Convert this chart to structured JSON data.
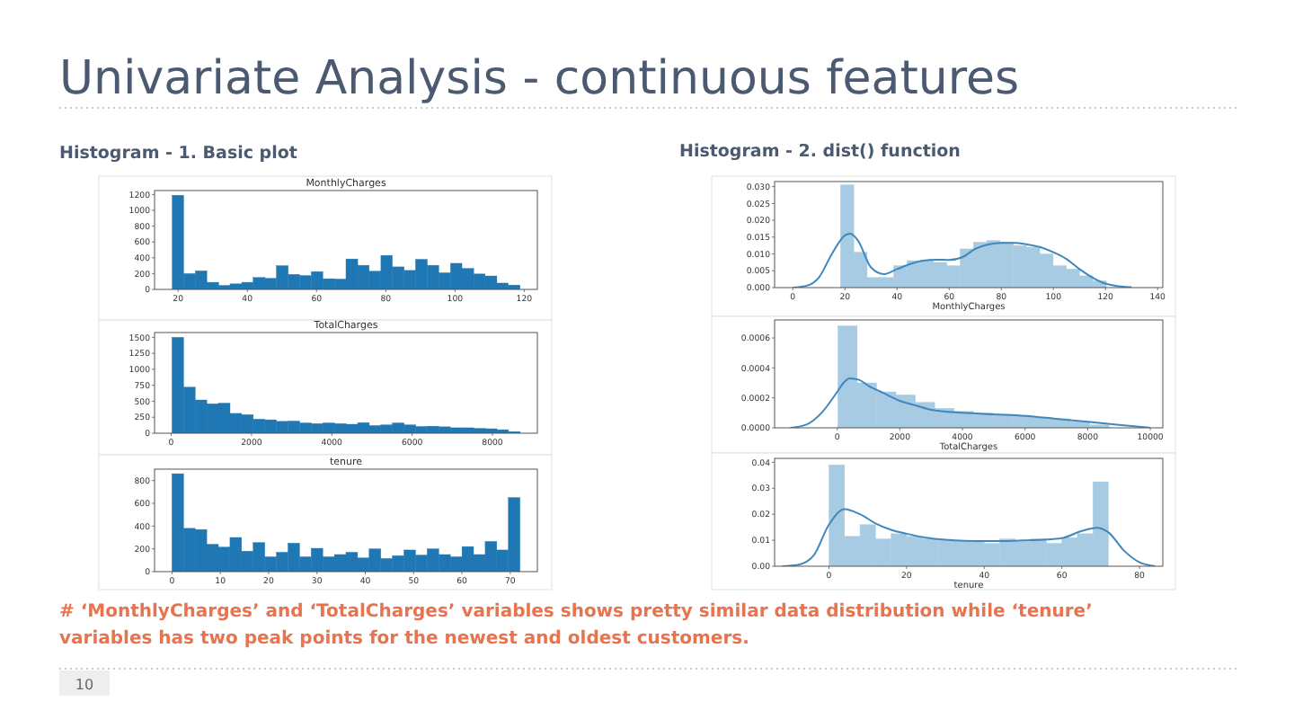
{
  "chart_data": [
    {
      "type": "other",
      "title": "Univariate Analysis - continuous features",
      "annotations": [
        "Histogram - 1. Basic plot",
        "Histogram - 2. dist() function",
        "# ‘MonthlyCharges’ and ‘TotalCharges’ variables shows pretty similar data distribution while ‘tenure’ variables has two peak points for the newest and oldest customers.",
        "10"
      ]
    },
    {
      "type": "histogram",
      "title": "MonthlyCharges",
      "color": "#1f77b4",
      "bins": [
        18.3,
        21.6,
        25,
        28.3,
        31.7,
        35,
        38.4,
        41.7,
        45.1,
        48.4,
        51.8,
        55.1,
        58.5,
        61.8,
        65.2,
        68.5,
        71.9,
        75.2,
        78.6,
        81.9,
        85.3,
        88.6,
        92,
        95.3,
        98.7,
        102,
        105.4,
        108.7,
        112.1,
        115.4,
        118.8
      ],
      "values": [
        1190,
        200,
        235,
        90,
        50,
        70,
        90,
        150,
        140,
        300,
        190,
        175,
        225,
        135,
        130,
        385,
        305,
        230,
        430,
        285,
        240,
        380,
        305,
        210,
        330,
        265,
        195,
        170,
        80,
        55
      ],
      "xlim": [
        13.2,
        123.8
      ],
      "xticks": [
        20,
        40,
        60,
        80,
        100,
        120
      ],
      "ylim": [
        0,
        1250
      ],
      "yticks": [
        0,
        200,
        400,
        600,
        800,
        1000,
        1200
      ]
    },
    {
      "type": "histogram",
      "title": "TotalCharges",
      "color": "#1f77b4",
      "bins": [
        19,
        308,
        597,
        886,
        1175,
        1464,
        1753,
        2042,
        2331,
        2620,
        2909,
        3198,
        3487,
        3776,
        4065,
        4354,
        4643,
        4932,
        5221,
        5510,
        5799,
        6088,
        6377,
        6666,
        6955,
        7244,
        7533,
        7822,
        8111,
        8400,
        8689
      ],
      "values": [
        1500,
        720,
        520,
        460,
        470,
        310,
        290,
        220,
        210,
        185,
        190,
        160,
        150,
        160,
        150,
        140,
        165,
        120,
        130,
        160,
        130,
        105,
        110,
        100,
        85,
        85,
        75,
        70,
        55,
        25
      ],
      "xlim": [
        -415,
        9118
      ],
      "xticks": [
        0,
        2000,
        4000,
        6000,
        8000
      ],
      "ylim": [
        0,
        1575
      ],
      "yticks": [
        0,
        250,
        500,
        750,
        1000,
        1250,
        1500
      ]
    },
    {
      "type": "histogram",
      "title": "tenure",
      "color": "#1f77b4",
      "bins": [
        0,
        2.4,
        4.8,
        7.2,
        9.6,
        12,
        14.4,
        16.8,
        19.2,
        21.6,
        24,
        26.4,
        28.8,
        31.2,
        33.6,
        36,
        38.4,
        40.8,
        43.2,
        45.6,
        48,
        50.4,
        52.8,
        55.2,
        57.6,
        60,
        62.4,
        64.8,
        67.2,
        69.6,
        72
      ],
      "values": [
        860,
        380,
        370,
        240,
        215,
        300,
        180,
        255,
        130,
        170,
        250,
        130,
        205,
        130,
        150,
        170,
        120,
        200,
        115,
        140,
        190,
        145,
        200,
        150,
        130,
        220,
        150,
        265,
        190,
        650
      ],
      "xlim": [
        -3.6,
        75.6
      ],
      "xticks": [
        0,
        10,
        20,
        30,
        40,
        50,
        60,
        70
      ],
      "ylim": [
        0,
        900
      ],
      "yticks": [
        0,
        200,
        400,
        600,
        800
      ]
    },
    {
      "type": "histogram",
      "xlabel": "MonthlyCharges",
      "xlim": [
        -7,
        142
      ],
      "xticks": [
        0,
        20,
        40,
        60,
        80,
        100,
        120,
        140
      ],
      "ylim": [
        0,
        0.0315
      ],
      "yticks": [
        {
          "value": 0,
          "label": "0.000"
        },
        {
          "value": 0.005,
          "label": "0.005"
        },
        {
          "value": 0.01,
          "label": "0.010"
        },
        {
          "value": 0.015,
          "label": "0.015"
        },
        {
          "value": 0.02,
          "label": "0.020"
        },
        {
          "value": 0.025,
          "label": "0.025"
        },
        {
          "value": 0.03,
          "label": "0.030"
        }
      ],
      "series": [
        {
          "type": "histogram",
          "color": "#a6cbe3",
          "bins": [
            18.3,
            23.4,
            28.5,
            33.6,
            38.7,
            43.8,
            48.9,
            54,
            59.1,
            64.2,
            69.3,
            74.4,
            79.5,
            84.6,
            89.7,
            94.8,
            99.9,
            105,
            110.1,
            115.2,
            120.3
          ],
          "values": [
            0.0305,
            0.0105,
            0.003,
            0.003,
            0.0065,
            0.008,
            0.0082,
            0.0075,
            0.0065,
            0.0115,
            0.0135,
            0.014,
            0.0135,
            0.0125,
            0.012,
            0.01,
            0.0065,
            0.0055,
            0.0035,
            0.002
          ]
        },
        {
          "type": "line",
          "color": "#3f87bc",
          "x": [
            0,
            5,
            10,
            15,
            20,
            22,
            25,
            30,
            35,
            40,
            45,
            50,
            55,
            60,
            65,
            70,
            75,
            80,
            85,
            90,
            95,
            100,
            105,
            110,
            115,
            120,
            125,
            130
          ],
          "values": [
            0,
            0.0005,
            0.003,
            0.01,
            0.0155,
            0.016,
            0.014,
            0.006,
            0.004,
            0.0055,
            0.007,
            0.008,
            0.0083,
            0.0082,
            0.009,
            0.0115,
            0.0128,
            0.0133,
            0.0133,
            0.0128,
            0.012,
            0.0105,
            0.0085,
            0.0055,
            0.003,
            0.0012,
            0.0004,
            0.0001
          ]
        }
      ]
    },
    {
      "type": "histogram",
      "xlabel": "TotalCharges",
      "xlim": [
        -2000,
        10400
      ],
      "xticks": [
        0,
        2000,
        4000,
        6000,
        8000,
        10000
      ],
      "ylim": [
        0,
        0.00072
      ],
      "yticks": [
        {
          "value": 0,
          "label": "0.0000"
        },
        {
          "value": 0.0002,
          "label": "0.0002"
        },
        {
          "value": 0.0004,
          "label": "0.0004"
        },
        {
          "value": 0.0006,
          "label": "0.0006"
        }
      ],
      "series": [
        {
          "type": "histogram",
          "color": "#a6cbe3",
          "bins": [
            19,
            638,
            1257,
            1876,
            2495,
            3114,
            3733,
            4352,
            4971,
            5590,
            6209,
            6828,
            7447,
            8066,
            8685
          ],
          "values": [
            0.00068,
            0.0003,
            0.00024,
            0.00022,
            0.00017,
            0.00013,
            0.00011,
            0.0001,
            9e-05,
            8e-05,
            7e-05,
            6e-05,
            4e-05,
            2e-05
          ]
        },
        {
          "type": "line",
          "color": "#3f87bc",
          "x": [
            -1500,
            -1000,
            -500,
            0,
            200,
            400,
            700,
            1000,
            1500,
            2000,
            2500,
            3000,
            4000,
            5000,
            6000,
            7000,
            8000,
            9000,
            10000
          ],
          "values": [
            0,
            2e-05,
            0.0001,
            0.00024,
            0.0003,
            0.00033,
            0.00032,
            0.00028,
            0.00023,
            0.00018,
            0.00015,
            0.00012,
            0.0001,
            9e-05,
            8e-05,
            6e-05,
            4e-05,
            2e-05,
            0
          ]
        }
      ]
    },
    {
      "type": "histogram",
      "xlabel": "tenure",
      "xlim": [
        -14,
        86
      ],
      "xticks": [
        0,
        20,
        40,
        60,
        80
      ],
      "ylim": [
        0,
        0.0415
      ],
      "yticks": [
        {
          "value": 0,
          "label": "0.00"
        },
        {
          "value": 0.01,
          "label": "0.01"
        },
        {
          "value": 0.02,
          "label": "0.02"
        },
        {
          "value": 0.03,
          "label": "0.03"
        },
        {
          "value": 0.04,
          "label": "0.04"
        }
      ],
      "series": [
        {
          "type": "histogram",
          "color": "#a6cbe3",
          "bins": [
            0,
            4,
            8,
            12,
            16,
            20,
            24,
            28,
            32,
            36,
            40,
            44,
            48,
            52,
            56,
            60,
            64,
            68,
            72
          ],
          "values": [
            0.039,
            0.0115,
            0.016,
            0.0105,
            0.0125,
            0.0115,
            0.0105,
            0.01,
            0.0098,
            0.0095,
            0.0088,
            0.0105,
            0.0095,
            0.0105,
            0.0088,
            0.011,
            0.0125,
            0.0325
          ]
        },
        {
          "type": "line",
          "color": "#3f87bc",
          "x": [
            -12,
            -8,
            -4,
            0,
            4,
            8,
            12,
            16,
            20,
            25,
            30,
            35,
            40,
            45,
            50,
            55,
            60,
            65,
            69,
            72,
            76,
            80,
            84
          ],
          "values": [
            0,
            0.0005,
            0.004,
            0.016,
            0.022,
            0.02,
            0.0165,
            0.014,
            0.0125,
            0.011,
            0.0102,
            0.0098,
            0.0097,
            0.0097,
            0.0099,
            0.0102,
            0.0108,
            0.0135,
            0.0148,
            0.013,
            0.006,
            0.0015,
            0
          ]
        }
      ]
    }
  ]
}
